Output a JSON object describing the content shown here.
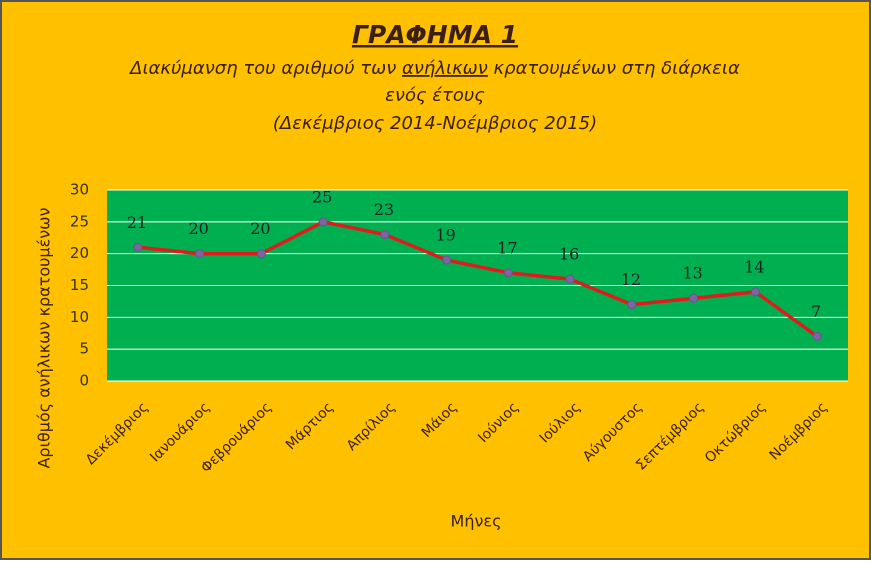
{
  "chart_data": {
    "type": "line",
    "title": "ΓΡΑΦΗΜΑ 1",
    "subtitle": [
      [
        "Διακύμανση του αριθμού των ",
        "ανήλικων",
        " κρατουμένων στη διάρκεια"
      ],
      "ενός έτους",
      "(Δεκέμβριος 2014-Νοέμβριος 2015)"
    ],
    "x_label": "Μήνες",
    "y_label": "Αριθμός ανήλικων κρατουμένων",
    "categories": [
      "Δεκέμβριος",
      "Ιανουάριος",
      "Φεβρουάριος",
      "Μάρτιος",
      "Απρίλιος",
      "Μάιος",
      "Ιούνιος",
      "Ιούλιος",
      "Αύγουστος",
      "Σεπτέμβριος",
      "Οκτώβριος",
      "Νοέμβριος"
    ],
    "values": [
      21,
      20,
      20,
      25,
      23,
      19,
      17,
      16,
      12,
      13,
      14,
      7
    ],
    "color": "#e01b1b",
    "marker_color": "#8064a2",
    "ylim": [
      0,
      30
    ],
    "yticks": [
      0,
      5,
      10,
      15,
      20,
      25,
      30
    ],
    "grid": true
  }
}
